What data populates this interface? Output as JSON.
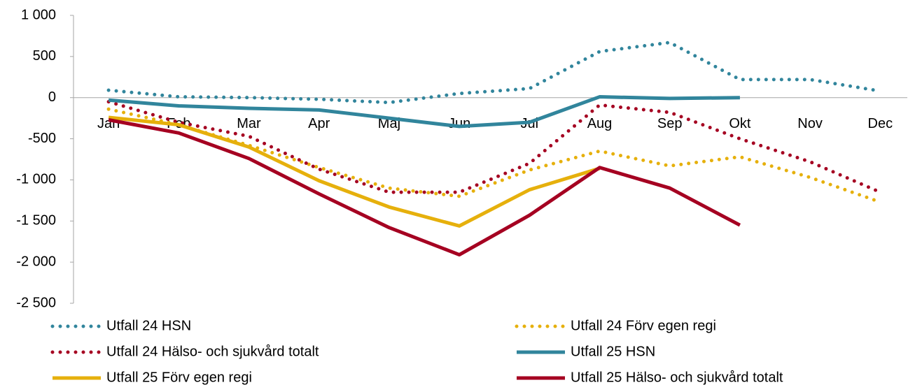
{
  "chart_data": {
    "type": "line",
    "categories": [
      "Jan",
      "Feb",
      "Mar",
      "Apr",
      "Maj",
      "Jun",
      "Jul",
      "Aug",
      "Sep",
      "Okt",
      "Nov",
      "Dec"
    ],
    "ylim": [
      -2500,
      1000
    ],
    "yticks": [
      {
        "value": -2500,
        "label": "-2 500"
      },
      {
        "value": -2000,
        "label": "-2 000"
      },
      {
        "value": -1500,
        "label": "-1 500"
      },
      {
        "value": -1000,
        "label": "-1 000"
      },
      -500,
      0,
      500,
      {
        "value": 1000,
        "label": "1 000"
      }
    ],
    "grid": false,
    "series": [
      {
        "name": "Utfall 24 HSN",
        "color": "#31859c",
        "dash": "dotted",
        "values": [
          90,
          10,
          0,
          -20,
          -60,
          50,
          110,
          560,
          670,
          220,
          220,
          80
        ]
      },
      {
        "name": "Utfall 24 Förv egen regi",
        "color": "#e6b00c",
        "dash": "dotted",
        "values": [
          -140,
          -330,
          -580,
          -850,
          -1100,
          -1200,
          -880,
          -650,
          -830,
          -720,
          -970,
          -1270
        ]
      },
      {
        "name": "Utfall 24 Hälso- och sjukvård totalt",
        "color": "#a50021",
        "dash": "dotted",
        "values": [
          -50,
          -300,
          -470,
          -870,
          -1150,
          -1150,
          -800,
          -90,
          -180,
          -500,
          -780,
          -1150
        ]
      },
      {
        "name": "Utfall 25 HSN",
        "color": "#31859c",
        "dash": "solid",
        "values": [
          -30,
          -100,
          -130,
          -150,
          -250,
          -350,
          -300,
          10,
          -10,
          0,
          null,
          null
        ]
      },
      {
        "name": "Utfall 25 Förv egen regi",
        "color": "#e6b00c",
        "dash": "solid",
        "values": [
          -240,
          -330,
          -600,
          -1010,
          -1330,
          -1560,
          -1120,
          -860,
          null,
          null,
          null,
          null
        ]
      },
      {
        "name": "Utfall 25 Hälso- och sjukvård totalt",
        "color": "#a50021",
        "dash": "solid",
        "values": [
          -270,
          -430,
          -740,
          -1170,
          -1580,
          -1910,
          -1430,
          -850,
          -1100,
          -1550,
          null,
          null
        ]
      }
    ]
  }
}
